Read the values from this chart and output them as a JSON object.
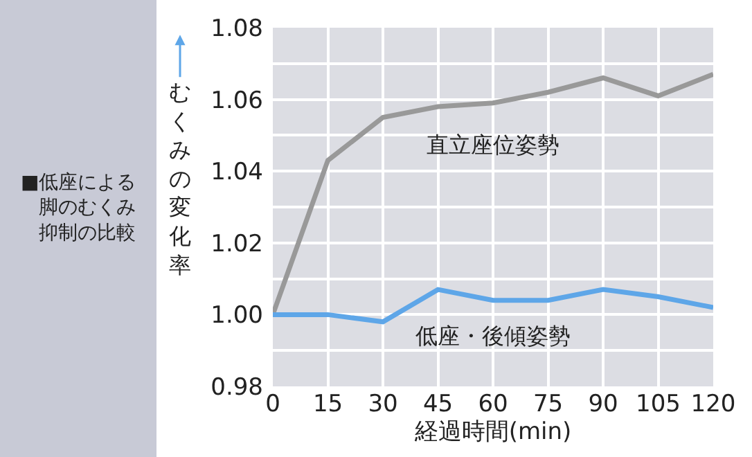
{
  "chart_data": {
    "type": "line",
    "title": "■低座による脚のむくみ抑制の比較",
    "ylabel": "むくみの変化率",
    "xlabel": "経過時間(min)",
    "x": [
      0,
      15,
      30,
      45,
      60,
      75,
      90,
      105,
      120
    ],
    "series": [
      {
        "name": "直立座位姿勢",
        "color": "#999999",
        "values": [
          1.0,
          1.043,
          1.055,
          1.058,
          1.059,
          1.062,
          1.066,
          1.061,
          1.067
        ]
      },
      {
        "name": "低座・後傾姿勢",
        "color": "#5ea6e8",
        "values": [
          1.0,
          1.0,
          0.998,
          1.007,
          1.004,
          1.004,
          1.007,
          1.005,
          1.002
        ]
      }
    ],
    "xlim": [
      0,
      120
    ],
    "xticks": [
      0,
      15,
      30,
      45,
      60,
      75,
      90,
      105,
      120
    ],
    "ylim": [
      0.98,
      1.08
    ],
    "yticks": [
      {
        "value": 0.98,
        "label": "0.98"
      },
      {
        "value": 0.99,
        "label": null
      },
      {
        "value": 1.0,
        "label": "1.00"
      },
      {
        "value": 1.01,
        "label": null
      },
      {
        "value": 1.02,
        "label": "1.02"
      },
      {
        "value": 1.03,
        "label": null
      },
      {
        "value": 1.04,
        "label": "1.04"
      },
      {
        "value": 1.05,
        "label": null
      },
      {
        "value": 1.06,
        "label": "1.06"
      },
      {
        "value": 1.07,
        "label": null
      },
      {
        "value": 1.08,
        "label": "1.08"
      }
    ],
    "grid": true,
    "legend": false,
    "marker": "none",
    "line_style": "solid"
  }
}
